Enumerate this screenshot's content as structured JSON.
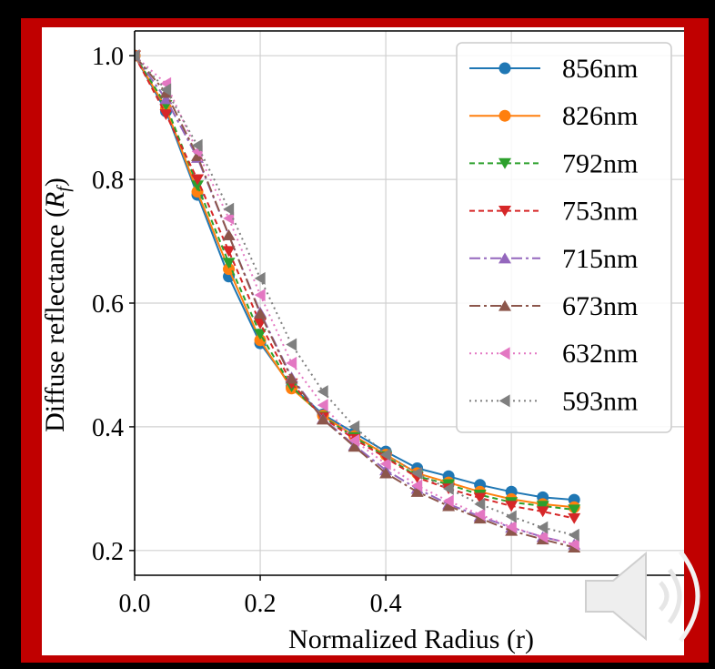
{
  "chart_data": {
    "type": "line",
    "xlabel": "Normalized Radius (r)",
    "ylabel": "Diffuse reflectance (R_f)",
    "ylabel_main": "Diffuse reflectance (",
    "ylabel_symbol": "R",
    "ylabel_sub": "f",
    "ylabel_close": ")",
    "xlim": [
      0.0,
      0.875
    ],
    "ylim": [
      0.16,
      1.04
    ],
    "xticks": [
      0.0,
      0.2,
      0.4
    ],
    "xtick_labels": [
      "0.0",
      "0.2",
      "0.4"
    ],
    "yticks": [
      0.2,
      0.4,
      0.6,
      0.8,
      1.0
    ],
    "ytick_labels": [
      "0.2",
      "0.4",
      "0.6",
      "0.8",
      "1.0"
    ],
    "grid": true,
    "legend_position": "top-right",
    "x": [
      0.0,
      0.05,
      0.1,
      0.15,
      0.2,
      0.25,
      0.3,
      0.35,
      0.4,
      0.45,
      0.5,
      0.55,
      0.6,
      0.65,
      0.7
    ],
    "series": [
      {
        "name": "856nm",
        "color": "#1f77b4",
        "marker": "circle",
        "dash": "",
        "values": [
          1.0,
          0.91,
          0.775,
          0.643,
          0.535,
          0.465,
          0.42,
          0.39,
          0.36,
          0.333,
          0.32,
          0.306,
          0.295,
          0.286,
          0.282
        ]
      },
      {
        "name": "826nm",
        "color": "#ff7f0e",
        "marker": "circle",
        "dash": "",
        "values": [
          1.0,
          0.915,
          0.78,
          0.655,
          0.54,
          0.462,
          0.418,
          0.385,
          0.355,
          0.325,
          0.31,
          0.295,
          0.283,
          0.275,
          0.27
        ]
      },
      {
        "name": "792nm",
        "color": "#2ca02c",
        "marker": "triangle-down",
        "dash": "6,4",
        "values": [
          1.0,
          0.92,
          0.79,
          0.665,
          0.55,
          0.465,
          0.416,
          0.383,
          0.352,
          0.32,
          0.307,
          0.29,
          0.278,
          0.272,
          0.266
        ]
      },
      {
        "name": "753nm",
        "color": "#d62728",
        "marker": "triangle-down",
        "dash": "6,4",
        "values": [
          1.0,
          0.905,
          0.8,
          0.684,
          0.567,
          0.47,
          0.415,
          0.38,
          0.35,
          0.318,
          0.3,
          0.285,
          0.272,
          0.263,
          0.252
        ]
      },
      {
        "name": "715nm",
        "color": "#9467bd",
        "marker": "triangle-up",
        "dash": "12,4,3,4",
        "values": [
          1.0,
          0.93,
          0.835,
          0.71,
          0.585,
          0.48,
          0.413,
          0.37,
          0.33,
          0.3,
          0.275,
          0.255,
          0.237,
          0.222,
          0.21
        ]
      },
      {
        "name": "673nm",
        "color": "#8c564b",
        "marker": "triangle-up",
        "dash": "12,4,3,4",
        "values": [
          1.0,
          0.94,
          0.838,
          0.71,
          0.583,
          0.478,
          0.412,
          0.368,
          0.325,
          0.295,
          0.272,
          0.252,
          0.232,
          0.218,
          0.205
        ]
      },
      {
        "name": "632nm",
        "color": "#e377c2",
        "marker": "triangle-left",
        "dash": "2,4",
        "values": [
          1.0,
          0.955,
          0.845,
          0.737,
          0.613,
          0.503,
          0.435,
          0.378,
          0.34,
          0.305,
          0.28,
          0.258,
          0.238,
          0.222,
          0.21
        ]
      },
      {
        "name": "593nm",
        "color": "#7f7f7f",
        "marker": "triangle-left",
        "dash": "2,4",
        "values": [
          1.0,
          0.945,
          0.855,
          0.752,
          0.64,
          0.533,
          0.457,
          0.4,
          0.355,
          0.325,
          0.3,
          0.275,
          0.255,
          0.237,
          0.225
        ]
      }
    ]
  },
  "overlay": {
    "speaker_icon": "speaker-icon"
  }
}
